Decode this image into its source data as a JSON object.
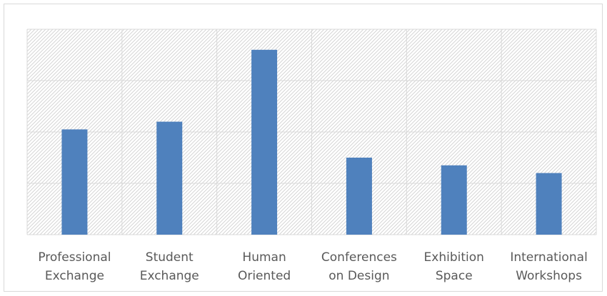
{
  "chart_data": {
    "type": "bar",
    "categories": [
      [
        "Professional",
        "Exchange"
      ],
      [
        "Student",
        "Exchange"
      ],
      [
        "Human",
        "Oriented"
      ],
      [
        "Conferences",
        "on Design"
      ],
      [
        "Exhibition",
        "Space"
      ],
      [
        "International",
        "Workshops"
      ]
    ],
    "values": [
      2.05,
      2.2,
      3.6,
      1.5,
      1.35,
      1.2
    ],
    "ylim": [
      0,
      4
    ],
    "y_gridline_count": 4,
    "y_tick_labels_shown": false,
    "grid": true,
    "plot_background": "hatched",
    "legend": "none",
    "bar_color": "#4f81bd",
    "gridline_color": "#d9d9d9",
    "hatch_color": "#d0d0d0",
    "label_color": "#595959"
  }
}
